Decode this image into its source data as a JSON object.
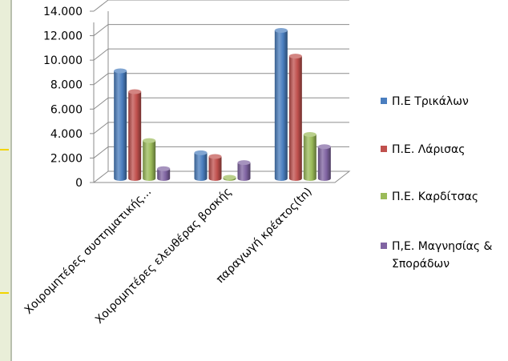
{
  "chart_data": {
    "type": "bar",
    "title": "",
    "xlabel": "",
    "ylabel": "",
    "ylim": [
      0,
      14000
    ],
    "yticks": [
      0,
      2000,
      4000,
      6000,
      8000,
      10000,
      12000,
      14000
    ],
    "ytick_labels": [
      "0",
      "2.000",
      "4.000",
      "6.000",
      "8.000",
      "10.000",
      "12.000",
      "14.000"
    ],
    "grid": true,
    "legend_position": "right",
    "style": "3d-cylinder",
    "categories": [
      "Χοιρομητέρες συστηματικής...",
      "Χοιρομητέρες ελευθέρας βοσκής",
      "παραγωγή κρέατος(tn)"
    ],
    "series": [
      {
        "name": "Π.Ε Τρικάλων",
        "values": [
          8800,
          2100,
          12100
        ],
        "color": "#4a7ebf"
      },
      {
        "name": "Π.Ε. Λάρισας",
        "values": [
          7100,
          1800,
          10000
        ],
        "color": "#c0504d"
      },
      {
        "name": "Π.Ε. Καρδίτσας",
        "values": [
          3100,
          100,
          3600
        ],
        "color": "#9bbb59"
      },
      {
        "name": "Π,Ε. Μαγνησίας & Σποράδων",
        "values": [
          800,
          1300,
          2600
        ],
        "color": "#8064a2"
      }
    ]
  }
}
